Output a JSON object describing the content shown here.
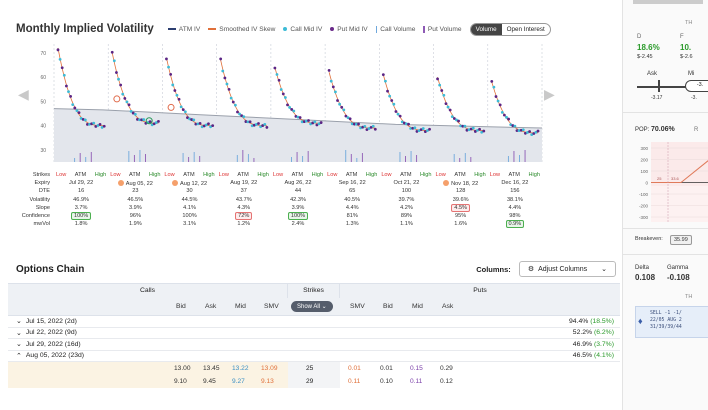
{
  "chart": {
    "title": "Monthly Implied Volatility",
    "legend": [
      {
        "label": "ATM IV",
        "kind": "line",
        "color": "#2c3e70"
      },
      {
        "label": "Smoothed IV Skew",
        "kind": "line",
        "color": "#e0703a"
      },
      {
        "label": "Call Mid IV",
        "kind": "dot",
        "color": "#3dbbd6"
      },
      {
        "label": "Put Mid IV",
        "kind": "dot",
        "color": "#6a2a8a"
      },
      {
        "label": "Call Volume",
        "kind": "bar",
        "color": "#6fa8dc"
      },
      {
        "label": "Put Volume",
        "kind": "bar",
        "color": "#8e5ab5"
      }
    ],
    "toggle": {
      "volume": "Volume",
      "open_interest": "Open Interest"
    }
  },
  "chart_data": {
    "type": "scatter",
    "yticks": [
      "70",
      "60",
      "50",
      "40",
      "30"
    ],
    "ylim": [
      25,
      72
    ],
    "groups": [
      {
        "expiry": "Jul 29, 22",
        "start": 72,
        "end": 40
      },
      {
        "expiry": "Aug 05, 22",
        "start": 70,
        "end": 41
      },
      {
        "expiry": "Aug 12, 22",
        "start": 68,
        "end": 40
      },
      {
        "expiry": "Aug 19, 22",
        "start": 67,
        "end": 40
      },
      {
        "expiry": "Aug 26, 22",
        "start": 64,
        "end": 41
      },
      {
        "expiry": "Sep 16, 22",
        "start": 62,
        "end": 39
      },
      {
        "expiry": "Oct 21, 22",
        "start": 61,
        "end": 38
      },
      {
        "expiry": "Nov 18, 22",
        "start": 60,
        "end": 38
      },
      {
        "expiry": "Dec 16, 22",
        "start": 58,
        "end": 37
      }
    ],
    "atm_line": [
      47,
      46.5,
      45.5,
      44.5,
      43.5,
      42.5,
      41.5,
      40.5,
      40,
      39.5,
      39
    ]
  },
  "grid": {
    "labels": {
      "strikes": "Strikes",
      "expiry": "Expiry",
      "dte": "DTE",
      "volatility": "Volatility",
      "slope": "Slope",
      "confidence": "Confidence",
      "mmvol": "mwVol"
    },
    "strike_low": "Low",
    "strike_atm": "ATM",
    "strike_high": "High",
    "columns": [
      {
        "expiry": "Jul 29, 22",
        "dte": "16",
        "vol": "46.9%",
        "slope": "3.7%",
        "conf": "100%",
        "mmvol": "1.8%",
        "icon": false,
        "conf_badge": "g",
        "slope_badge": "",
        "mm_badge": ""
      },
      {
        "expiry": "Aug 05, 22",
        "dte": "23",
        "vol": "46.5%",
        "slope": "3.9%",
        "conf": "96%",
        "mmvol": "1.9%",
        "icon": true,
        "conf_badge": "",
        "slope_badge": "",
        "mm_badge": ""
      },
      {
        "expiry": "Aug 12, 22",
        "dte": "30",
        "vol": "44.5%",
        "slope": "4.1%",
        "conf": "100%",
        "mmvol": "3.1%",
        "icon": true,
        "conf_badge": "",
        "slope_badge": "",
        "mm_badge": ""
      },
      {
        "expiry": "Aug 19, 22",
        "dte": "37",
        "vol": "43.7%",
        "slope": "4.3%",
        "conf": "72%",
        "mmvol": "1.2%",
        "icon": false,
        "conf_badge": "r",
        "slope_badge": "",
        "mm_badge": ""
      },
      {
        "expiry": "Aug 26, 22",
        "dte": "44",
        "vol": "42.3%",
        "slope": "3.9%",
        "conf": "100%",
        "mmvol": "2.4%",
        "icon": false,
        "conf_badge": "g",
        "slope_badge": "",
        "mm_badge": ""
      },
      {
        "expiry": "Sep 16, 22",
        "dte": "65",
        "vol": "40.5%",
        "slope": "4.4%",
        "conf": "81%",
        "mmvol": "1.3%",
        "icon": false,
        "conf_badge": "",
        "slope_badge": "",
        "mm_badge": ""
      },
      {
        "expiry": "Oct 21, 22",
        "dte": "100",
        "vol": "39.7%",
        "slope": "4.2%",
        "conf": "89%",
        "mmvol": "1.1%",
        "icon": false,
        "conf_badge": "",
        "slope_badge": "",
        "mm_badge": ""
      },
      {
        "expiry": "Nov 18, 22",
        "dte": "128",
        "vol": "39.6%",
        "slope": "4.5%",
        "conf": "95%",
        "mmvol": "1.6%",
        "icon": true,
        "conf_badge": "",
        "slope_badge": "r",
        "mm_badge": ""
      },
      {
        "expiry": "Dec 16, 22",
        "dte": "156",
        "vol": "38.1%",
        "slope": "4.4%",
        "conf": "98%",
        "mmvol": "0.9%",
        "icon": false,
        "conf_badge": "",
        "slope_badge": "",
        "mm_badge": "g"
      }
    ]
  },
  "options_chain": {
    "title": "Options Chain",
    "columns_label": "Columns:",
    "adjust_label": "Adjust Columns",
    "calls": "Calls",
    "strikes": "Strikes",
    "puts": "Puts",
    "show_all": "Show All",
    "headers": {
      "bid": "Bid",
      "ask": "Ask",
      "mid": "Mid",
      "smv": "SMV"
    },
    "expirations": [
      {
        "label": "Jul 15, 2022 (2d)",
        "iv": "94.4%",
        "chg": "(18.5%)",
        "open": false
      },
      {
        "label": "Jul 22, 2022 (9d)",
        "iv": "52.2%",
        "chg": "(6.2%)",
        "open": false
      },
      {
        "label": "Jul 29, 2022 (16d)",
        "iv": "46.9%",
        "chg": "(3.7%)",
        "open": false
      },
      {
        "label": "Aug 05, 2022 (23d)",
        "iv": "46.5%",
        "chg": "(4.1%)",
        "open": true
      }
    ],
    "rows": [
      {
        "c_bid": "13.00",
        "c_ask": "13.45",
        "c_mid": "13.22",
        "c_smv": "13.09",
        "strike": "25",
        "p_smv": "0.01",
        "p_bid": "0.01",
        "p_mid": "0.15",
        "p_ask": "0.29"
      },
      {
        "c_bid": "9.10",
        "c_ask": "9.45",
        "c_mid": "9.27",
        "c_smv": "9.13",
        "strike": "29",
        "p_smv": "0.11",
        "p_bid": "0.10",
        "p_mid": "0.11",
        "p_ask": "0.12"
      }
    ]
  },
  "sidebar": {
    "top": "TH",
    "d_lbl": "D",
    "d_val": "18.6%",
    "d_sub": "$-2.45",
    "f_lbl": "F",
    "f_val": "10.",
    "f_sub": "$-2.6",
    "ask": "Ask",
    "mi": "Mi",
    "slider_val": "-3.",
    "slider_lo": "-3.17",
    "slider_hi": "-3.",
    "pop_lbl": "POP:",
    "pop_val": "70.06%",
    "r": "R",
    "chart_ticks": [
      "300",
      "200",
      "100",
      "0",
      "-100",
      "-200",
      "-300"
    ],
    "mini_vals": [
      "25",
      "33.6"
    ],
    "breakeven_lbl": "Breakeven:",
    "breakeven_val": "35.99",
    "delta_lbl": "Delta",
    "delta_val": "0.108",
    "gamma_lbl": "Gamma",
    "gamma_val": "-0.108",
    "th": "TH",
    "order": [
      "SELL -1 -1/",
      "22/05 AUG 2",
      "31/39/39/44"
    ]
  }
}
